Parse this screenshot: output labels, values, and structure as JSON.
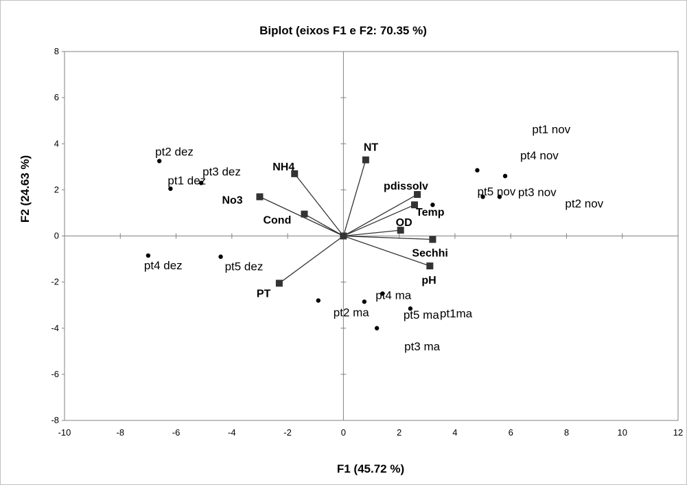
{
  "chart_data": {
    "type": "scatter",
    "title": "Biplot (eixos F1 e F2: 70.35 %)",
    "xlabel": "F1 (45.72 %)",
    "ylabel": "F2 (24.63 %)",
    "xlim": [
      -10,
      12
    ],
    "ylim": [
      -8,
      8
    ],
    "xticks": [
      -10,
      -8,
      -6,
      -4,
      -2,
      0,
      2,
      4,
      6,
      8,
      10,
      12
    ],
    "yticks": [
      -8,
      -6,
      -4,
      -2,
      0,
      2,
      4,
      6,
      8
    ],
    "grid": false,
    "legend": "none",
    "colors": {
      "observations": "#000000",
      "variables": "#333333",
      "frame": "#808080"
    },
    "observations": [
      {
        "label": "pt1 dez",
        "x": -6.2,
        "y": 2.05
      },
      {
        "label": "pt2 dez",
        "x": -6.6,
        "y": 3.25
      },
      {
        "label": "pt3 dez",
        "x": -5.1,
        "y": 2.3
      },
      {
        "label": "pt4 dez",
        "x": -7.0,
        "y": -0.85
      },
      {
        "label": "pt5 dez",
        "x": -4.4,
        "y": -0.9
      },
      {
        "label": "pt1 nov",
        "x": 4.8,
        "y": 2.85
      },
      {
        "label": "pt4 nov",
        "x": 5.8,
        "y": 2.6
      },
      {
        "label": "pt5 nov",
        "x": 5.0,
        "y": 1.7
      },
      {
        "label": "pt3 nov",
        "x": 5.6,
        "y": 1.7
      },
      {
        "label": "pt2 nov",
        "x": 3.2,
        "y": 1.35
      },
      {
        "label": "pt2 ma",
        "x": -0.9,
        "y": -2.8
      },
      {
        "label": "pt5 ma",
        "x": 0.75,
        "y": -2.85
      },
      {
        "label": "pt4 ma",
        "x": 1.4,
        "y": -2.5
      },
      {
        "label": "pt1ma",
        "x": 2.4,
        "y": -3.15
      },
      {
        "label": "pt3 ma",
        "x": 1.2,
        "y": -4.0
      }
    ],
    "variables": [
      {
        "label": "NT",
        "x": 0.8,
        "y": 3.3
      },
      {
        "label": "NH4",
        "x": -1.75,
        "y": 2.7
      },
      {
        "label": "No3",
        "x": -3.0,
        "y": 1.7
      },
      {
        "label": "Cond",
        "x": -1.4,
        "y": 0.95
      },
      {
        "label": "pdissolv",
        "x": 2.65,
        "y": 1.8
      },
      {
        "label": "Temp",
        "x": 2.55,
        "y": 1.35
      },
      {
        "label": "OD",
        "x": 2.05,
        "y": 0.25
      },
      {
        "label": "Sechhi",
        "x": 3.2,
        "y": -0.15
      },
      {
        "label": "pH",
        "x": 3.1,
        "y": -1.3
      },
      {
        "label": "PT",
        "x": -2.3,
        "y": -2.05
      }
    ]
  }
}
